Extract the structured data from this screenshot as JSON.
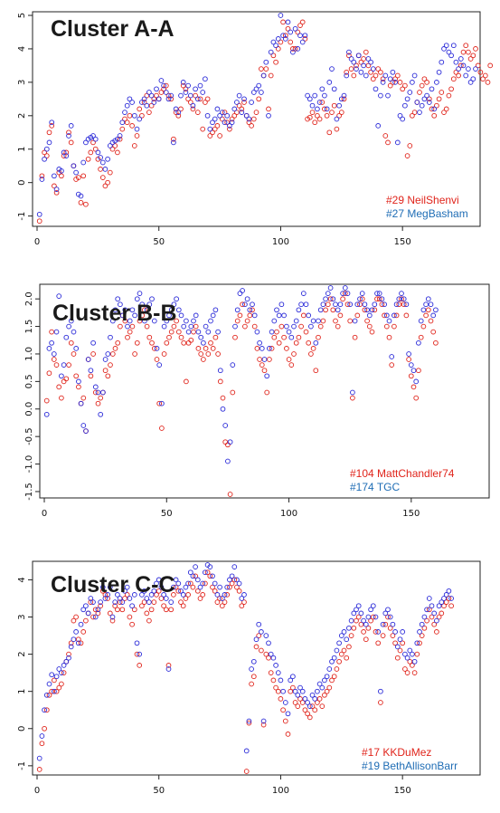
{
  "colors": {
    "series_a": "#e0241b",
    "series_b": "#2a2ad8",
    "legend_b": "#1f6db5"
  },
  "chart_data": [
    {
      "type": "scatter",
      "title": "Cluster A-A",
      "xlim": [
        0,
        180
      ],
      "ylim": [
        -1.2,
        5.0
      ],
      "xticks": [
        "0",
        "50",
        "100",
        "150"
      ],
      "yticks": [
        "-1",
        "0",
        "1",
        "2",
        "3",
        "4",
        "5"
      ],
      "legend": [
        "#29 NeilShenvi",
        "#27 MegBasham"
      ],
      "legend_position": "bottom-right",
      "series": [
        {
          "name": "#29 NeilShenvi",
          "color": "#e0241b",
          "y": [
            -1.15,
            0.2,
            0.9,
            0.8,
            1.5,
            1.7,
            -0.1,
            -0.3,
            0.3,
            0.2,
            0.8,
            0.9,
            1.5,
            1.2,
            0.5,
            0.1,
            0.15,
            -0.6,
            0.2,
            -0.65,
            0.7,
            0.9,
            1.2,
            1.0,
            0.7,
            0.4,
            0.15,
            -0.1,
            0.0,
            0.3,
            1.0,
            1.1,
            0.9,
            1.3,
            1.6,
            1.9,
            1.8,
            2.0,
            1.7,
            1.1,
            1.4,
            2.2,
            2.0,
            2.4,
            2.6,
            2.1,
            2.3,
            2.5,
            2.6,
            2.5,
            2.7,
            2.8,
            2.9,
            2.6,
            2.5,
            1.3,
            2.1,
            2.0,
            2.2,
            2.9,
            2.8,
            2.5,
            2.4,
            2.2,
            2.6,
            2.1,
            2.5,
            1.6,
            2.4,
            2.5,
            1.4,
            1.5,
            1.6,
            1.7,
            1.4,
            1.9,
            2.1,
            1.8,
            1.6,
            1.9,
            2.0,
            2.1,
            2.3,
            2.2,
            2.4,
            2.0,
            1.8,
            1.7,
            1.9,
            2.1,
            2.5,
            3.4,
            3.2,
            3.4,
            2.2,
            3.2,
            3.8,
            3.6,
            4.0,
            4.2,
            4.8,
            4.4,
            4.6,
            4.2,
            4.0,
            4.0,
            4.5,
            4.7,
            4.8,
            4.3,
            1.9,
            1.95,
            2.1,
            1.8,
            2.0,
            1.9,
            2.4,
            2.2,
            2.0,
            1.5,
            2.1,
            2.3,
            1.6,
            2.0,
            2.1,
            2.5,
            3.3,
            3.8,
            3.4,
            3.2,
            3.5,
            3.8,
            3.6,
            3.7,
            3.9,
            3.5,
            3.3,
            3.1,
            3.2,
            3.4,
            3.3,
            3.1,
            1.4,
            1.2,
            2.9,
            3.0,
            3.1,
            3.2,
            3.0,
            2.8,
            2.9,
            0.8,
            1.1,
            2.0,
            2.1,
            2.4,
            2.7,
            2.9,
            3.1,
            3.0,
            2.5,
            2.2,
            2.0,
            2.3,
            2.5,
            2.7,
            2.1,
            2.2,
            2.6,
            2.8,
            3.1,
            3.3,
            3.2,
            3.5,
            3.9,
            4.1,
            3.9,
            3.7,
            3.8,
            4.0,
            3.5,
            3.3,
            3.1,
            3.2,
            3.0,
            3.5
          ]
        },
        {
          "name": "#27 MegBasham",
          "color": "#2a2ad8",
          "y": [
            -0.95,
            0.1,
            0.7,
            1.0,
            1.2,
            1.8,
            0.2,
            -0.2,
            0.4,
            0.35,
            0.9,
            0.8,
            1.4,
            1.7,
            0.5,
            0.3,
            -0.35,
            -0.4,
            0.6,
            1.2,
            1.3,
            1.35,
            1.4,
            1.3,
            0.9,
            0.75,
            0.6,
            0.4,
            0.7,
            1.1,
            1.2,
            1.25,
            1.3,
            1.4,
            1.8,
            2.1,
            2.3,
            2.5,
            2.4,
            2.0,
            1.6,
            1.9,
            2.4,
            2.5,
            2.3,
            2.7,
            2.6,
            2.4,
            2.8,
            2.5,
            3.05,
            2.9,
            2.7,
            2.5,
            2.6,
            1.2,
            2.2,
            2.1,
            2.6,
            3.0,
            2.7,
            2.9,
            2.6,
            2.3,
            2.8,
            2.5,
            2.9,
            2.7,
            3.1,
            2.0,
            1.6,
            1.8,
            1.9,
            2.2,
            2.0,
            2.1,
            1.8,
            2.0,
            1.7,
            1.8,
            2.2,
            2.4,
            2.6,
            2.1,
            2.5,
            2.0,
            1.9,
            2.4,
            2.7,
            2.8,
            2.9,
            2.7,
            3.2,
            3.6,
            2.0,
            3.9,
            4.2,
            4.1,
            4.3,
            5.0,
            4.4,
            4.3,
            4.8,
            4.5,
            3.9,
            4.6,
            4.0,
            4.4,
            4.2,
            4.4,
            2.6,
            2.5,
            2.3,
            2.6,
            2.2,
            2.4,
            2.8,
            2.6,
            2.2,
            3.0,
            3.4,
            2.8,
            1.9,
            2.3,
            2.5,
            2.6,
            3.2,
            3.9,
            3.7,
            3.6,
            3.4,
            3.8,
            3.3,
            3.5,
            3.2,
            3.7,
            3.6,
            3.4,
            2.8,
            1.7,
            2.6,
            3.0,
            3.2,
            2.6,
            3.1,
            3.3,
            3.0,
            1.2,
            2.0,
            1.9,
            2.3,
            2.5,
            2.7,
            3.0,
            3.2,
            2.4,
            2.1,
            2.3,
            2.5,
            2.6,
            2.4,
            2.8,
            2.2,
            3.0,
            3.3,
            3.6,
            4.0,
            4.1,
            3.9,
            3.8,
            4.1,
            3.6,
            3.4,
            3.7,
            3.5,
            3.2,
            3.4,
            3.0,
            3.1,
            3.4
          ]
        }
      ]
    },
    {
      "type": "scatter",
      "title": "Cluster B-B",
      "xlim": [
        0,
        180
      ],
      "ylim": [
        -1.55,
        2.2
      ],
      "xticks": [
        "0",
        "50",
        "100",
        "150"
      ],
      "yticks": [
        "-1.5",
        "-1.0",
        "-0.5",
        "0.0",
        "0.5",
        "1.0",
        "1.5",
        "2.0"
      ],
      "legend": [
        "#104 MattChandler74",
        "#174 TGC"
      ],
      "legend_position": "bottom-right",
      "series": [
        {
          "name": "#104 MattChandler74",
          "color": "#e0241b",
          "y": [
            0.15,
            0.65,
            1.4,
            0.9,
            0.8,
            0.4,
            0.2,
            0.5,
            0.55,
            0.8,
            1.2,
            1.0,
            0.6,
            0.4,
            0.1,
            0.2,
            -0.4,
            0.9,
            0.6,
            1.0,
            0.3,
            0.1,
            0.2,
            0.3,
            0.7,
            0.6,
            0.8,
            1.0,
            1.1,
            1.2,
            1.5,
            1.7,
            1.6,
            1.3,
            1.4,
            1.5,
            1.0,
            1.2,
            1.6,
            1.7,
            1.8,
            1.5,
            1.3,
            1.2,
            1.1,
            0.9,
            0.1,
            -0.35,
            1.0,
            1.2,
            1.3,
            1.4,
            1.5,
            1.6,
            1.4,
            1.3,
            1.2,
            0.5,
            1.2,
            1.25,
            1.4,
            1.5,
            1.1,
            1.0,
            0.9,
            1.1,
            1.0,
            1.2,
            1.1,
            1.3,
            1.0,
            0.5,
            0.2,
            -0.6,
            -0.65,
            -1.55,
            0.3,
            1.3,
            1.6,
            1.7,
            1.9,
            1.5,
            1.6,
            1.7,
            1.8,
            1.5,
            1.1,
            0.9,
            0.8,
            0.7,
            0.3,
            0.9,
            1.1,
            1.3,
            1.4,
            1.2,
            1.5,
            1.3,
            1.1,
            0.9,
            0.8,
            1.0,
            1.2,
            1.3,
            1.5,
            1.7,
            1.4,
            1.2,
            1.0,
            1.1,
            0.7,
            1.3,
            1.5,
            1.6,
            1.8,
            1.9,
            2.0,
            1.8,
            1.6,
            1.5,
            1.7,
            2.0,
            2.1,
            1.9,
            1.6,
            0.2,
            1.3,
            1.7,
            1.9,
            2.0,
            1.8,
            1.6,
            1.5,
            1.4,
            1.8,
            2.0,
            2.0,
            1.9,
            1.7,
            1.5,
            1.3,
            0.8,
            1.5,
            1.7,
            1.9,
            2.0,
            1.9,
            1.7,
            0.9,
            0.6,
            0.4,
            0.2,
            0.7,
            1.3,
            1.5,
            1.7,
            1.8,
            1.6,
            1.4,
            1.2
          ]
        },
        {
          "name": "#174 TGC",
          "color": "#2a2ad8",
          "y": [
            -0.1,
            1.1,
            1.2,
            1.0,
            1.4,
            2.05,
            0.6,
            0.8,
            1.3,
            1.5,
            1.6,
            1.4,
            1.1,
            0.5,
            0.1,
            -0.3,
            -0.4,
            0.9,
            0.7,
            1.2,
            0.4,
            0.3,
            -0.1,
            0.3,
            0.9,
            1.0,
            1.3,
            1.6,
            1.8,
            2.0,
            1.9,
            1.7,
            1.8,
            1.5,
            1.6,
            1.8,
            1.7,
            2.0,
            2.1,
            1.9,
            1.6,
            1.8,
            1.9,
            2.0,
            1.6,
            1.1,
            0.8,
            0.1,
            1.5,
            1.6,
            1.7,
            1.8,
            1.9,
            2.0,
            1.8,
            1.7,
            1.5,
            1.6,
            1.4,
            1.5,
            1.6,
            1.7,
            1.4,
            1.3,
            1.2,
            1.5,
            1.4,
            1.6,
            1.7,
            1.8,
            1.4,
            0.7,
            0.0,
            -0.3,
            -0.95,
            -0.6,
            0.8,
            1.5,
            1.8,
            2.1,
            2.15,
            1.9,
            2.0,
            1.8,
            1.9,
            1.7,
            1.4,
            1.2,
            1.1,
            0.9,
            0.6,
            1.1,
            1.4,
            1.6,
            1.8,
            1.7,
            1.9,
            1.7,
            1.5,
            1.4,
            1.3,
            1.5,
            1.6,
            1.8,
            1.9,
            2.1,
            1.9,
            1.7,
            1.5,
            1.6,
            1.2,
            1.6,
            1.8,
            1.9,
            2.0,
            2.1,
            2.2,
            2.0,
            1.9,
            1.8,
            1.9,
            2.1,
            2.2,
            2.1,
            1.9,
            0.3,
            1.6,
            1.9,
            2.0,
            2.1,
            1.9,
            1.8,
            1.7,
            1.8,
            1.9,
            2.1,
            2.1,
            2.0,
            1.9,
            1.7,
            1.6,
            0.95,
            1.7,
            1.9,
            2.0,
            2.1,
            2.0,
            1.9,
            1.0,
            0.8,
            0.7,
            0.5,
            1.2,
            1.6,
            1.8,
            1.9,
            2.0,
            1.9,
            1.7,
            1.8
          ]
        }
      ]
    },
    {
      "type": "scatter",
      "title": "Cluster C-C",
      "xlim": [
        0,
        180
      ],
      "ylim": [
        -1.15,
        4.4
      ],
      "xticks": [
        "0",
        "50",
        "100",
        "150"
      ],
      "yticks": [
        "-1",
        "0",
        "1",
        "2",
        "3",
        "4"
      ],
      "legend": [
        "#17 KKDuMez",
        "#19 BethAllisonBarr"
      ],
      "legend_position": "bottom-right",
      "series": [
        {
          "name": "#17 KKDuMez",
          "color": "#e0241b",
          "y": [
            -1.1,
            -0.4,
            0.0,
            0.5,
            0.9,
            1.0,
            1.3,
            1.0,
            1.1,
            1.2,
            1.5,
            1.8,
            2.0,
            2.3,
            2.9,
            3.0,
            2.4,
            2.3,
            2.6,
            2.9,
            3.1,
            3.4,
            3.0,
            3.2,
            3.1,
            3.3,
            3.7,
            3.6,
            3.5,
            3.1,
            2.9,
            3.3,
            3.2,
            3.4,
            3.2,
            3.5,
            3.6,
            3.0,
            2.8,
            3.2,
            2.0,
            1.7,
            3.3,
            3.4,
            3.1,
            2.9,
            3.2,
            3.4,
            3.6,
            3.7,
            3.5,
            3.3,
            3.2,
            1.7,
            3.2,
            3.6,
            3.8,
            3.7,
            3.4,
            3.3,
            3.5,
            3.6,
            3.9,
            3.8,
            4.1,
            3.7,
            3.5,
            3.6,
            3.9,
            4.2,
            4.1,
            3.8,
            3.7,
            3.4,
            3.5,
            3.3,
            3.4,
            3.6,
            3.8,
            3.9,
            4.0,
            3.8,
            3.7,
            3.3,
            3.4,
            -1.15,
            0.15,
            1.2,
            1.4,
            2.2,
            2.5,
            2.1,
            0.1,
            2.0,
            1.9,
            1.5,
            1.3,
            1.1,
            1.0,
            0.8,
            0.5,
            0.2,
            -0.15,
            1.0,
            1.1,
            0.7,
            0.6,
            0.8,
            0.7,
            0.5,
            0.4,
            0.3,
            0.6,
            0.5,
            0.7,
            0.8,
            0.6,
            0.9,
            1.0,
            1.1,
            1.3,
            1.4,
            1.6,
            1.8,
            2.0,
            2.1,
            1.9,
            2.2,
            2.5,
            2.7,
            2.9,
            3.0,
            2.8,
            2.6,
            2.4,
            2.7,
            2.9,
            3.0,
            2.6,
            2.3,
            0.7,
            2.5,
            2.8,
            3.0,
            2.7,
            2.5,
            2.3,
            1.9,
            2.1,
            2.3,
            1.6,
            1.5,
            1.8,
            1.7,
            1.5,
            2.0,
            2.3,
            2.5,
            2.7,
            2.9,
            3.2,
            3.0,
            2.8,
            2.6,
            3.0,
            3.1,
            3.3,
            3.4,
            3.5,
            3.3
          ]
        },
        {
          "name": "#19 BethAllisonBarr",
          "color": "#2a2ad8",
          "y": [
            -0.8,
            -0.2,
            0.5,
            0.9,
            1.2,
            1.45,
            1.0,
            1.4,
            1.6,
            1.5,
            1.7,
            1.8,
            1.9,
            2.2,
            2.4,
            2.6,
            2.3,
            2.8,
            3.2,
            3.3,
            3.1,
            3.5,
            3.4,
            3.0,
            3.2,
            3.4,
            3.8,
            3.5,
            3.6,
            3.8,
            3.0,
            3.4,
            3.6,
            3.5,
            3.4,
            3.7,
            3.8,
            3.5,
            3.3,
            3.6,
            2.3,
            2.0,
            3.6,
            3.7,
            3.5,
            3.4,
            3.6,
            3.7,
            3.9,
            4.0,
            3.8,
            3.6,
            3.5,
            1.6,
            3.4,
            3.8,
            4.0,
            3.9,
            3.7,
            3.6,
            3.8,
            3.9,
            4.2,
            4.1,
            4.35,
            4.0,
            3.8,
            3.9,
            4.2,
            4.4,
            4.35,
            4.1,
            3.9,
            3.6,
            3.8,
            3.5,
            3.6,
            3.8,
            4.0,
            4.1,
            4.35,
            4.0,
            3.9,
            3.5,
            3.6,
            -0.6,
            0.2,
            1.6,
            1.8,
            2.4,
            2.8,
            2.6,
            0.2,
            2.5,
            2.3,
            2.0,
            1.9,
            1.7,
            1.5,
            1.3,
            1.0,
            0.7,
            0.4,
            1.3,
            1.4,
            1.0,
            0.9,
            1.1,
            1.0,
            0.8,
            0.7,
            0.6,
            0.9,
            0.8,
            1.0,
            1.2,
            1.1,
            1.3,
            1.4,
            1.6,
            1.8,
            1.9,
            2.1,
            2.3,
            2.5,
            2.6,
            2.4,
            2.7,
            2.9,
            3.1,
            3.2,
            3.3,
            3.1,
            2.9,
            2.8,
            3.0,
            3.2,
            3.3,
            3.0,
            2.6,
            1.0,
            2.8,
            3.1,
            3.2,
            3.0,
            2.8,
            2.6,
            2.2,
            2.4,
            2.6,
            2.0,
            1.9,
            2.1,
            2.0,
            1.8,
            2.3,
            2.6,
            2.8,
            3.0,
            3.2,
            3.5,
            3.3,
            3.1,
            2.9,
            3.3,
            3.4,
            3.5,
            3.6,
            3.7,
            3.5
          ]
        }
      ]
    }
  ]
}
